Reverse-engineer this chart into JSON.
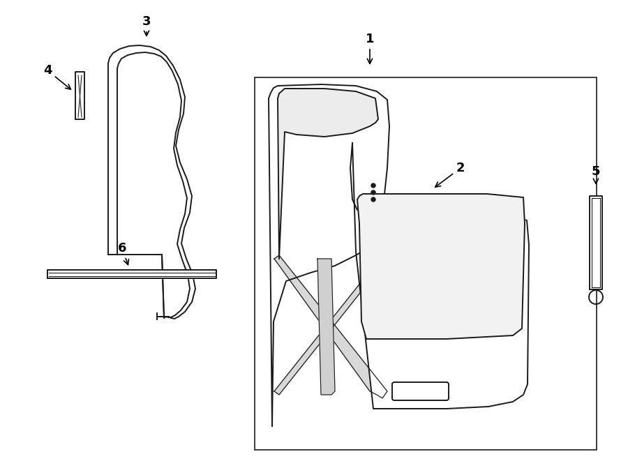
{
  "background_color": "#ffffff",
  "line_color": "#1a1a1a",
  "line_width": 1.4,
  "fig_width": 9.0,
  "fig_height": 6.61,
  "dpi": 100,
  "label_fontsize": 13
}
